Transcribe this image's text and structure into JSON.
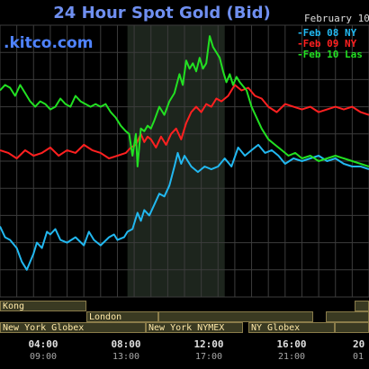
{
  "header": {
    "title": "24 Hour Spot Gold (Bid)",
    "brand": ".kitco.com",
    "date": "February 10"
  },
  "legend": [
    {
      "label": "Feb 08 NY",
      "color": "#22b8f0"
    },
    {
      "label": "Feb 09 NY",
      "color": "#ff2020"
    },
    {
      "label": "Feb 10 Las",
      "color": "#22e022"
    }
  ],
  "sessions": [
    {
      "label": "Kong"
    },
    {
      "label": "London"
    },
    {
      "label": "New York Globex"
    },
    {
      "label": "New York NYMEX"
    },
    {
      "label": "NY Globex"
    }
  ],
  "x_ticks": [
    {
      "top": "04:00",
      "bottom": "09:00"
    },
    {
      "top": "08:00",
      "bottom": "13:00"
    },
    {
      "top": "12:00",
      "bottom": "17:00"
    },
    {
      "top": "16:00",
      "bottom": "21:00"
    },
    {
      "top": "20",
      "bottom": "01"
    }
  ],
  "chart_data": {
    "type": "line",
    "title": "24 Hour Spot Gold (Bid)",
    "x_unit": "hour",
    "xlim": [
      0,
      22
    ],
    "ylim": [
      0,
      100
    ],
    "shaded_region": [
      7.6,
      13.4
    ],
    "series": [
      {
        "name": "Feb 08 NY",
        "color": "#22b8f0",
        "points": [
          [
            0,
            26
          ],
          [
            0.3,
            22
          ],
          [
            0.6,
            21
          ],
          [
            1,
            18
          ],
          [
            1.3,
            13
          ],
          [
            1.6,
            10
          ],
          [
            2,
            16
          ],
          [
            2.2,
            20
          ],
          [
            2.5,
            18
          ],
          [
            2.8,
            24
          ],
          [
            3,
            23
          ],
          [
            3.3,
            25
          ],
          [
            3.6,
            21
          ],
          [
            4,
            20
          ],
          [
            4.5,
            22
          ],
          [
            5,
            19
          ],
          [
            5.3,
            24
          ],
          [
            5.6,
            21
          ],
          [
            6,
            19
          ],
          [
            6.5,
            22
          ],
          [
            6.8,
            23
          ],
          [
            7,
            21
          ],
          [
            7.4,
            22
          ],
          [
            7.6,
            24
          ],
          [
            7.9,
            25
          ],
          [
            8.2,
            31
          ],
          [
            8.4,
            28
          ],
          [
            8.6,
            32
          ],
          [
            8.9,
            30
          ],
          [
            9.2,
            34
          ],
          [
            9.5,
            38
          ],
          [
            9.8,
            37
          ],
          [
            10.1,
            41
          ],
          [
            10.4,
            48
          ],
          [
            10.6,
            53
          ],
          [
            10.8,
            49
          ],
          [
            11,
            52
          ],
          [
            11.4,
            48
          ],
          [
            11.8,
            46
          ],
          [
            12.2,
            48
          ],
          [
            12.6,
            47
          ],
          [
            13,
            48
          ],
          [
            13.4,
            51
          ],
          [
            13.8,
            48
          ],
          [
            14.2,
            55
          ],
          [
            14.6,
            52
          ],
          [
            15,
            54
          ],
          [
            15.4,
            56
          ],
          [
            15.8,
            53
          ],
          [
            16.2,
            54
          ],
          [
            16.6,
            52
          ],
          [
            17,
            49
          ],
          [
            17.5,
            51
          ],
          [
            18,
            50
          ],
          [
            18.5,
            51
          ],
          [
            19,
            52
          ],
          [
            19.5,
            50
          ],
          [
            20,
            51
          ],
          [
            20.5,
            49
          ],
          [
            21,
            48
          ],
          [
            21.5,
            48
          ],
          [
            22,
            47
          ]
        ]
      },
      {
        "name": "Feb 09 NY",
        "color": "#ff2020",
        "points": [
          [
            0,
            54
          ],
          [
            0.5,
            53
          ],
          [
            1,
            51
          ],
          [
            1.5,
            54
          ],
          [
            2,
            52
          ],
          [
            2.5,
            53
          ],
          [
            3,
            55
          ],
          [
            3.5,
            52
          ],
          [
            4,
            54
          ],
          [
            4.5,
            53
          ],
          [
            5,
            56
          ],
          [
            5.5,
            54
          ],
          [
            6,
            53
          ],
          [
            6.5,
            51
          ],
          [
            7,
            52
          ],
          [
            7.5,
            53
          ],
          [
            7.8,
            55
          ],
          [
            8.1,
            56
          ],
          [
            8.4,
            60
          ],
          [
            8.6,
            57
          ],
          [
            8.8,
            59
          ],
          [
            9,
            58
          ],
          [
            9.3,
            55
          ],
          [
            9.6,
            59
          ],
          [
            9.9,
            56
          ],
          [
            10.2,
            60
          ],
          [
            10.5,
            62
          ],
          [
            10.8,
            58
          ],
          [
            11.1,
            64
          ],
          [
            11.4,
            68
          ],
          [
            11.7,
            70
          ],
          [
            12,
            68
          ],
          [
            12.3,
            71
          ],
          [
            12.6,
            70
          ],
          [
            12.9,
            73
          ],
          [
            13.2,
            72
          ],
          [
            13.6,
            74
          ],
          [
            14,
            78
          ],
          [
            14.4,
            76
          ],
          [
            14.8,
            77
          ],
          [
            15.2,
            74
          ],
          [
            15.6,
            73
          ],
          [
            16,
            70
          ],
          [
            16.5,
            68
          ],
          [
            17,
            71
          ],
          [
            17.5,
            70
          ],
          [
            18,
            69
          ],
          [
            18.5,
            70
          ],
          [
            19,
            68
          ],
          [
            19.5,
            69
          ],
          [
            20,
            70
          ],
          [
            20.5,
            69
          ],
          [
            21,
            70
          ],
          [
            21.5,
            68
          ],
          [
            22,
            67
          ]
        ]
      },
      {
        "name": "Feb 10 Las",
        "color": "#22e022",
        "points": [
          [
            0,
            76
          ],
          [
            0.3,
            78
          ],
          [
            0.6,
            77
          ],
          [
            0.9,
            74
          ],
          [
            1.2,
            78
          ],
          [
            1.5,
            75
          ],
          [
            1.8,
            72
          ],
          [
            2.1,
            70
          ],
          [
            2.4,
            72
          ],
          [
            2.7,
            71
          ],
          [
            3,
            69
          ],
          [
            3.3,
            70
          ],
          [
            3.6,
            73
          ],
          [
            3.9,
            71
          ],
          [
            4.2,
            70
          ],
          [
            4.5,
            74
          ],
          [
            4.8,
            72
          ],
          [
            5.1,
            71
          ],
          [
            5.4,
            70
          ],
          [
            5.7,
            71
          ],
          [
            6,
            70
          ],
          [
            6.3,
            71
          ],
          [
            6.6,
            68
          ],
          [
            6.9,
            66
          ],
          [
            7.2,
            63
          ],
          [
            7.5,
            61
          ],
          [
            7.7,
            60
          ],
          [
            7.9,
            52
          ],
          [
            8.1,
            60
          ],
          [
            8.2,
            48
          ],
          [
            8.4,
            62
          ],
          [
            8.6,
            61
          ],
          [
            8.8,
            63
          ],
          [
            9,
            62
          ],
          [
            9.2,
            65
          ],
          [
            9.5,
            70
          ],
          [
            9.8,
            67
          ],
          [
            10.1,
            72
          ],
          [
            10.4,
            75
          ],
          [
            10.7,
            82
          ],
          [
            10.9,
            78
          ],
          [
            11.1,
            87
          ],
          [
            11.3,
            84
          ],
          [
            11.5,
            86
          ],
          [
            11.7,
            83
          ],
          [
            11.9,
            88
          ],
          [
            12.1,
            84
          ],
          [
            12.3,
            86
          ],
          [
            12.5,
            96
          ],
          [
            12.7,
            92
          ],
          [
            12.9,
            90
          ],
          [
            13.1,
            88
          ],
          [
            13.3,
            83
          ],
          [
            13.5,
            79
          ],
          [
            13.7,
            82
          ],
          [
            13.9,
            78
          ],
          [
            14.1,
            81
          ],
          [
            14.3,
            79
          ],
          [
            14.7,
            76
          ],
          [
            15,
            70
          ],
          [
            15.3,
            66
          ],
          [
            15.6,
            62
          ],
          [
            16,
            58
          ],
          [
            16.4,
            56
          ],
          [
            16.8,
            54
          ],
          [
            17.2,
            52
          ],
          [
            17.6,
            53
          ],
          [
            18,
            51
          ],
          [
            18.5,
            52
          ],
          [
            19,
            50
          ],
          [
            19.5,
            51
          ],
          [
            20,
            52
          ],
          [
            20.5,
            51
          ],
          [
            21,
            50
          ],
          [
            21.5,
            49
          ],
          [
            22,
            48
          ]
        ]
      }
    ]
  }
}
